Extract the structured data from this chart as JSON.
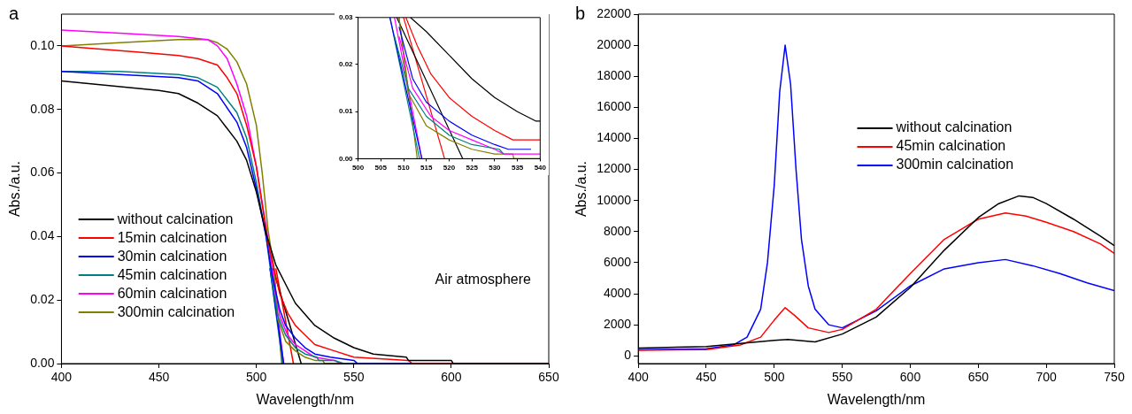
{
  "chart_data": [
    {
      "type": "line",
      "title": "a",
      "xlabel": "Wavelength/nm",
      "ylabel": "Abs./a.u.",
      "xlim": [
        400,
        650
      ],
      "xticks": [
        400,
        450,
        500,
        550,
        600,
        650
      ],
      "ylim": [
        0,
        0.11
      ],
      "yticks": [
        {
          "value": 0,
          "label": "0.00"
        },
        {
          "value": 0.02,
          "label": "0.02"
        },
        {
          "value": 0.04,
          "label": "0.04"
        },
        {
          "value": 0.06,
          "label": "0.06"
        },
        {
          "value": 0.08,
          "label": "0.08"
        },
        {
          "value": 0.1,
          "label": "0.10"
        }
      ],
      "grid": false,
      "legend": "bottom left",
      "annotations": [
        "Air atmosphere"
      ],
      "series": [
        {
          "name": "without calcination",
          "color": "#000000",
          "x": [
            400,
            450,
            460,
            470,
            480,
            490,
            495,
            500,
            505,
            510,
            515,
            520,
            530,
            540,
            550,
            560,
            577,
            578,
            600,
            601,
            650
          ],
          "values": [
            0.089,
            0.086,
            0.085,
            0.082,
            0.078,
            0.07,
            0.064,
            0.054,
            0.041,
            0.031,
            0.025,
            0.019,
            0.012,
            0.008,
            0.005,
            0.003,
            0.002,
            0.001,
            0.001,
            0,
            0
          ]
        },
        {
          "name": "15min calcination",
          "color": "#ff0000",
          "x": [
            400,
            420,
            440,
            460,
            470,
            480,
            485,
            490,
            495,
            500,
            503,
            506,
            509,
            512,
            516,
            520,
            525,
            530,
            540,
            550,
            578,
            580,
            650
          ],
          "values": [
            0.1,
            0.099,
            0.098,
            0.097,
            0.096,
            0.094,
            0.09,
            0.085,
            0.075,
            0.062,
            0.05,
            0.038,
            0.03,
            0.022,
            0.016,
            0.012,
            0.009,
            0.006,
            0.004,
            0.002,
            0.001,
            0,
            0
          ]
        },
        {
          "name": "30min calcination",
          "color": "#0000ff",
          "x": [
            400,
            430,
            460,
            470,
            480,
            490,
            495,
            500,
            505,
            508,
            512,
            515,
            520,
            525,
            530,
            538,
            550,
            552,
            650
          ],
          "values": [
            0.092,
            0.091,
            0.09,
            0.089,
            0.085,
            0.076,
            0.068,
            0.055,
            0.04,
            0.028,
            0.017,
            0.012,
            0.008,
            0.005,
            0.003,
            0.002,
            0.001,
            0,
            0
          ]
        },
        {
          "name": "45min calcination",
          "color": "#008080",
          "x": [
            400,
            430,
            460,
            470,
            480,
            490,
            495,
            500,
            505,
            508,
            511,
            515,
            520,
            525,
            531,
            532,
            540,
            545,
            650
          ],
          "values": [
            0.092,
            0.092,
            0.091,
            0.09,
            0.087,
            0.079,
            0.071,
            0.057,
            0.04,
            0.026,
            0.015,
            0.009,
            0.005,
            0.003,
            0.002,
            0.001,
            0.001,
            0,
            0
          ]
        },
        {
          "name": "60min calcination",
          "color": "#ff00ff",
          "x": [
            400,
            430,
            460,
            475,
            480,
            485,
            490,
            495,
            500,
            505,
            509,
            512,
            516,
            520,
            525,
            530,
            540,
            543,
            650
          ],
          "values": [
            0.105,
            0.104,
            0.103,
            0.102,
            0.1,
            0.096,
            0.088,
            0.078,
            0.062,
            0.043,
            0.026,
            0.015,
            0.009,
            0.006,
            0.004,
            0.002,
            0.001,
            0,
            0
          ]
        },
        {
          "name": "300min calcination",
          "color": "#808000",
          "x": [
            400,
            430,
            460,
            475,
            480,
            485,
            490,
            495,
            500,
            503,
            506,
            509,
            511,
            515,
            520,
            525,
            530,
            534,
            535,
            650
          ],
          "values": [
            0.1,
            0.101,
            0.102,
            0.102,
            0.101,
            0.099,
            0.095,
            0.088,
            0.075,
            0.06,
            0.042,
            0.03,
            0.014,
            0.007,
            0.004,
            0.002,
            0.001,
            0.001,
            0,
            0
          ]
        },
        {
          "color": "#000000",
          "x": [
            508.5,
            523
          ],
          "values": [
            0.03,
            0
          ]
        },
        {
          "color": "#ff0000",
          "x": [
            510,
            519
          ],
          "values": [
            0.03,
            0
          ]
        },
        {
          "color": "#0000ff",
          "x": [
            507,
            514
          ],
          "values": [
            0.03,
            0
          ]
        },
        {
          "color": "#008080",
          "x": [
            507,
            513.5
          ],
          "values": [
            0.03,
            0
          ]
        },
        {
          "color": "#ff00ff",
          "x": [
            508,
            514
          ],
          "values": [
            0.03,
            0
          ]
        },
        {
          "color": "#808000",
          "x": [
            509,
            513
          ],
          "values": [
            0.03,
            0
          ]
        }
      ]
    },
    {
      "type": "line",
      "xlim": [
        500,
        540
      ],
      "xticks": [
        500,
        505,
        510,
        515,
        520,
        525,
        530,
        535,
        540
      ],
      "ylim": [
        0,
        0.03
      ],
      "yticks": [
        {
          "value": 0,
          "label": "0.00"
        },
        {
          "value": 0.01,
          "label": "0.01"
        },
        {
          "value": 0.02,
          "label": "0.02"
        },
        {
          "value": 0.03,
          "label": "0.03"
        }
      ],
      "grid": false,
      "series": [
        {
          "color": "#000000",
          "x": [
            511.5,
            515,
            520,
            525,
            530,
            535,
            539,
            540
          ],
          "values": [
            0.03,
            0.027,
            0.022,
            0.017,
            0.013,
            0.01,
            0.008,
            0.008
          ]
        },
        {
          "color": "#ff0000",
          "x": [
            510.5,
            513,
            516,
            520,
            525,
            530,
            534,
            540
          ],
          "values": [
            0.03,
            0.024,
            0.018,
            0.013,
            0.009,
            0.006,
            0.004,
            0.004
          ]
        },
        {
          "color": "#0000ff",
          "x": [
            509,
            512,
            515,
            520,
            525,
            530,
            533,
            538
          ],
          "values": [
            0.028,
            0.017,
            0.012,
            0.008,
            0.005,
            0.003,
            0.002,
            0.002
          ]
        },
        {
          "color": "#008080",
          "x": [
            508,
            511,
            515,
            520,
            525,
            531,
            532
          ],
          "values": [
            0.026,
            0.015,
            0.009,
            0.005,
            0.003,
            0.002,
            0.001
          ]
        },
        {
          "color": "#ff00ff",
          "x": [
            509,
            512,
            516,
            520,
            525,
            530,
            532,
            540
          ],
          "values": [
            0.026,
            0.015,
            0.009,
            0.006,
            0.004,
            0.002,
            0.001,
            0.001
          ]
        },
        {
          "color": "#808000",
          "x": [
            509,
            511,
            515,
            520,
            525,
            530,
            534,
            534.2,
            540
          ],
          "values": [
            0.03,
            0.014,
            0.007,
            0.004,
            0.002,
            0.001,
            0.001,
            0,
            0
          ]
        },
        {
          "color": "#000000",
          "x": [
            508.5,
            523
          ],
          "values": [
            0.03,
            0
          ]
        },
        {
          "color": "#ff0000",
          "x": [
            510,
            519
          ],
          "values": [
            0.03,
            0
          ]
        },
        {
          "color": "#0000ff",
          "x": [
            507,
            514
          ],
          "values": [
            0.03,
            0
          ]
        },
        {
          "color": "#008080",
          "x": [
            507,
            513.5
          ],
          "values": [
            0.03,
            0
          ]
        },
        {
          "color": "#ff00ff",
          "x": [
            508,
            514
          ],
          "values": [
            0.03,
            0
          ]
        },
        {
          "color": "#808000",
          "x": [
            509,
            513
          ],
          "values": [
            0.03,
            0
          ]
        }
      ]
    },
    {
      "type": "line",
      "title": "b",
      "xlabel": "Wavelength/nm",
      "ylabel": "Abs./a.u.",
      "xlim": [
        400,
        750
      ],
      "xticks": [
        400,
        450,
        500,
        550,
        600,
        650,
        700,
        750
      ],
      "ylim": [
        -500,
        22000
      ],
      "yticks": [
        0,
        2000,
        4000,
        6000,
        8000,
        10000,
        12000,
        14000,
        16000,
        18000,
        20000,
        22000
      ],
      "grid": false,
      "legend": "top right",
      "series": [
        {
          "name": "without calcination",
          "color": "#000000",
          "x": [
            400,
            450,
            475,
            500,
            510,
            530,
            550,
            575,
            600,
            625,
            650,
            665,
            680,
            690,
            700,
            720,
            740,
            750
          ],
          "values": [
            500,
            600,
            800,
            1000,
            1050,
            900,
            1400,
            2500,
            4400,
            6800,
            8900,
            9800,
            10300,
            10200,
            9800,
            8800,
            7700,
            7100
          ]
        },
        {
          "name": "45min calcination",
          "color": "#ff0000",
          "x": [
            400,
            450,
            475,
            490,
            500,
            508,
            515,
            525,
            540,
            550,
            575,
            600,
            625,
            650,
            670,
            685,
            700,
            720,
            740,
            750
          ],
          "values": [
            350,
            400,
            700,
            1200,
            2300,
            3100,
            2600,
            1800,
            1500,
            1700,
            3000,
            5300,
            7500,
            8800,
            9200,
            9000,
            8600,
            8000,
            7200,
            6600
          ]
        },
        {
          "name": "300min calcination",
          "color": "#0000ff",
          "x": [
            400,
            450,
            470,
            480,
            490,
            495,
            500,
            504,
            508,
            512,
            516,
            520,
            525,
            530,
            540,
            550,
            575,
            600,
            625,
            650,
            670,
            690,
            710,
            730,
            750
          ],
          "values": [
            400,
            450,
            700,
            1200,
            3000,
            6000,
            11000,
            17000,
            20000,
            17500,
            12000,
            7500,
            4500,
            3000,
            2000,
            1800,
            2900,
            4500,
            5600,
            6000,
            6200,
            5800,
            5300,
            4700,
            4200
          ]
        }
      ]
    }
  ]
}
